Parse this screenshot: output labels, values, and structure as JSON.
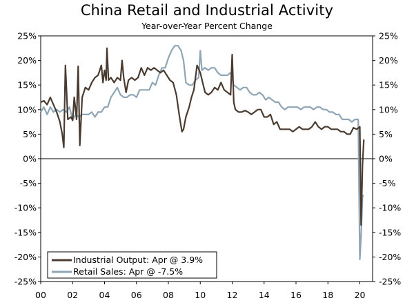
{
  "chart_data": {
    "type": "line",
    "title": "China Retail and Industrial Activity",
    "subtitle": "Year-over-Year Percent Change",
    "xlabel": "",
    "ylabel": "",
    "ylim": [
      -25,
      25
    ],
    "xlim": [
      2000,
      2020.8
    ],
    "y_ticks": [
      25,
      20,
      15,
      10,
      5,
      0,
      -5,
      -10,
      -15,
      -20,
      -25
    ],
    "y_tick_labels": [
      "25%",
      "20%",
      "15%",
      "10%",
      "5%",
      "0%",
      "-5%",
      "-10%",
      "-15%",
      "-20%",
      "-25%"
    ],
    "x_ticks": [
      2000,
      2002,
      2004,
      2006,
      2008,
      2010,
      2012,
      2014,
      2016,
      2018,
      2020
    ],
    "x_tick_labels": [
      "00",
      "02",
      "04",
      "06",
      "08",
      "10",
      "12",
      "14",
      "16",
      "18",
      "20"
    ],
    "legend_position": "bottom-left",
    "colors": {
      "industrial": "#4a3b31",
      "retail": "#8ea5b5"
    },
    "series": [
      {
        "name": "Industrial Output",
        "legend": "Industrial Output: Apr @ 3.9%",
        "x": [
          2000.0,
          2000.2,
          2000.4,
          2000.6,
          2000.8,
          2001.0,
          2001.2,
          2001.35,
          2001.45,
          2001.55,
          2001.7,
          2001.9,
          2002.0,
          2002.1,
          2002.25,
          2002.35,
          2002.45,
          2002.6,
          2002.8,
          2003.0,
          2003.2,
          2003.4,
          2003.6,
          2003.8,
          2003.9,
          2004.0,
          2004.1,
          2004.15,
          2004.25,
          2004.4,
          2004.6,
          2004.8,
          2005.0,
          2005.1,
          2005.2,
          2005.35,
          2005.5,
          2005.7,
          2005.9,
          2006.1,
          2006.3,
          2006.5,
          2006.7,
          2006.9,
          2007.1,
          2007.3,
          2007.5,
          2007.7,
          2007.9,
          2008.1,
          2008.3,
          2008.5,
          2008.7,
          2008.85,
          2008.95,
          2009.1,
          2009.3,
          2009.45,
          2009.6,
          2009.8,
          2010.0,
          2010.15,
          2010.3,
          2010.5,
          2010.7,
          2010.9,
          2011.1,
          2011.3,
          2011.5,
          2011.7,
          2011.9,
          2012.0,
          2012.1,
          2012.2,
          2012.4,
          2012.6,
          2012.8,
          2013.0,
          2013.2,
          2013.4,
          2013.6,
          2013.8,
          2014.0,
          2014.2,
          2014.4,
          2014.6,
          2014.8,
          2015.0,
          2015.2,
          2015.4,
          2015.6,
          2015.8,
          2016.0,
          2016.2,
          2016.4,
          2016.6,
          2016.8,
          2017.0,
          2017.2,
          2017.4,
          2017.6,
          2017.8,
          2018.0,
          2018.2,
          2018.4,
          2018.6,
          2018.8,
          2019.0,
          2019.2,
          2019.4,
          2019.6,
          2019.8,
          2020.0,
          2020.08,
          2020.17,
          2020.25
        ],
        "values": [
          11.5,
          11.8,
          11.0,
          12.5,
          11.0,
          9.5,
          7.5,
          5.0,
          2.3,
          19.0,
          8.0,
          8.5,
          7.8,
          12.5,
          8.0,
          18.8,
          2.7,
          12.5,
          14.5,
          14.0,
          15.5,
          16.5,
          17.0,
          19.0,
          15.5,
          18.0,
          16.0,
          22.5,
          16.0,
          16.5,
          15.5,
          16.5,
          16.0,
          20.0,
          16.5,
          13.5,
          16.0,
          16.5,
          16.0,
          16.5,
          18.5,
          17.0,
          18.5,
          18.0,
          18.5,
          18.0,
          17.5,
          18.0,
          17.0,
          16.0,
          15.5,
          13.0,
          8.5,
          5.5,
          6.0,
          8.5,
          10.5,
          12.5,
          14.0,
          19.0,
          17.5,
          15.5,
          13.5,
          13.0,
          13.5,
          14.5,
          14.0,
          15.5,
          14.0,
          13.5,
          13.0,
          21.2,
          11.5,
          10.0,
          9.5,
          9.5,
          9.8,
          9.5,
          9.0,
          9.5,
          10.0,
          10.0,
          8.5,
          8.5,
          9.0,
          7.0,
          7.5,
          6.0,
          6.0,
          6.0,
          6.0,
          5.5,
          6.0,
          6.5,
          6.0,
          6.0,
          6.0,
          6.5,
          7.5,
          6.5,
          6.0,
          6.5,
          6.5,
          6.0,
          6.0,
          6.0,
          5.5,
          5.5,
          5.0,
          5.0,
          6.3,
          6.0,
          6.5,
          -13.5,
          -1.1,
          3.9
        ]
      },
      {
        "name": "Retail Sales",
        "legend": "Retail Sales: Apr @ -7.5%",
        "x": [
          2000.0,
          2000.2,
          2000.4,
          2000.6,
          2000.8,
          2001.0,
          2001.2,
          2001.4,
          2001.6,
          2001.8,
          2002.0,
          2002.2,
          2002.4,
          2002.6,
          2002.8,
          2003.0,
          2003.2,
          2003.4,
          2003.6,
          2003.8,
          2004.0,
          2004.2,
          2004.4,
          2004.6,
          2004.8,
          2005.0,
          2005.2,
          2005.4,
          2005.6,
          2005.8,
          2006.0,
          2006.2,
          2006.4,
          2006.6,
          2006.8,
          2007.0,
          2007.2,
          2007.4,
          2007.6,
          2007.8,
          2008.0,
          2008.2,
          2008.4,
          2008.6,
          2008.8,
          2008.95,
          2009.1,
          2009.3,
          2009.5,
          2009.7,
          2009.9,
          2010.0,
          2010.1,
          2010.3,
          2010.5,
          2010.7,
          2010.9,
          2011.1,
          2011.3,
          2011.5,
          2011.7,
          2011.9,
          2012.1,
          2012.3,
          2012.5,
          2012.7,
          2012.9,
          2013.1,
          2013.3,
          2013.5,
          2013.7,
          2013.9,
          2014.1,
          2014.3,
          2014.5,
          2014.7,
          2014.9,
          2015.1,
          2015.3,
          2015.5,
          2015.7,
          2015.9,
          2016.1,
          2016.3,
          2016.5,
          2016.7,
          2016.9,
          2017.1,
          2017.3,
          2017.5,
          2017.7,
          2017.9,
          2018.1,
          2018.3,
          2018.5,
          2018.7,
          2018.9,
          2019.1,
          2019.3,
          2019.5,
          2019.7,
          2019.9,
          2020.0,
          2020.08,
          2020.17,
          2020.25
        ],
        "values": [
          9.5,
          10.5,
          9.0,
          10.5,
          9.5,
          10.0,
          9.5,
          10.0,
          9.5,
          10.5,
          8.0,
          9.0,
          8.5,
          9.0,
          9.0,
          9.0,
          9.5,
          8.5,
          9.5,
          9.5,
          10.5,
          10.5,
          12.5,
          13.5,
          14.5,
          13.0,
          12.5,
          12.5,
          13.0,
          13.0,
          12.5,
          14.0,
          14.0,
          14.0,
          14.0,
          15.5,
          15.0,
          17.0,
          18.5,
          18.5,
          20.5,
          22.0,
          23.0,
          23.0,
          22.0,
          20.0,
          15.5,
          15.0,
          15.0,
          16.0,
          16.5,
          22.0,
          18.0,
          18.5,
          18.0,
          18.5,
          18.5,
          17.5,
          17.0,
          17.0,
          17.0,
          17.5,
          15.0,
          14.5,
          14.0,
          14.5,
          14.5,
          13.5,
          13.0,
          13.0,
          13.5,
          13.0,
          12.0,
          12.5,
          12.0,
          11.5,
          11.5,
          10.5,
          10.0,
          10.5,
          10.5,
          10.5,
          10.5,
          10.0,
          10.5,
          10.5,
          10.5,
          10.0,
          10.5,
          10.5,
          10.0,
          10.0,
          9.5,
          9.5,
          9.0,
          9.0,
          8.0,
          8.0,
          8.0,
          7.5,
          8.0,
          8.0,
          -20.5,
          -15.8,
          -7.5,
          -7.5
        ]
      }
    ]
  }
}
